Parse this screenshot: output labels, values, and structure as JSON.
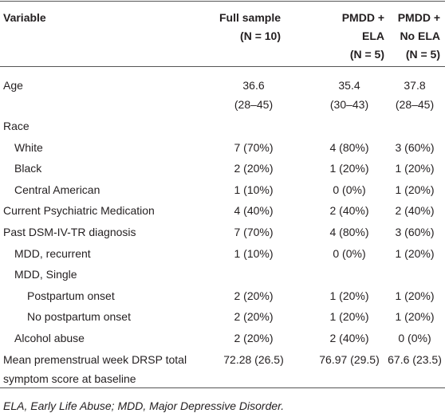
{
  "table": {
    "header": [
      [
        "Variable"
      ],
      [
        "Full sample",
        "(N = 10)"
      ],
      [
        "PMDD +",
        "ELA",
        "(N = 5)"
      ],
      [
        "PMDD +",
        "No ELA",
        "(N = 5)"
      ]
    ],
    "rows": [
      {
        "label": [
          "Age"
        ],
        "values": [
          [
            "36.6",
            "(28–45)"
          ],
          [
            "35.4",
            "(30–43)"
          ],
          [
            "37.8",
            "(28–45)"
          ]
        ]
      },
      {
        "label": [
          "Race"
        ],
        "children": [
          {
            "label": [
              "White"
            ],
            "values": [
              [
                "7 (70%)"
              ],
              [
                "4 (80%)"
              ],
              [
                "3 (60%)"
              ]
            ]
          },
          {
            "label": [
              "Black"
            ],
            "values": [
              [
                "2 (20%)"
              ],
              [
                "1 (20%)"
              ],
              [
                "1 (20%)"
              ]
            ]
          },
          {
            "label": [
              "Central American"
            ],
            "values": [
              [
                "1 (10%)"
              ],
              [
                "0 (0%)"
              ],
              [
                "1 (20%)"
              ]
            ]
          }
        ]
      },
      {
        "label": [
          "Current Psychiatric Medication"
        ],
        "values": [
          [
            "4 (40%)"
          ],
          [
            "2 (40%)"
          ],
          [
            "2 (40%)"
          ]
        ]
      },
      {
        "label": [
          "Past DSM-IV-TR diagnosis"
        ],
        "values": [
          [
            "7 (70%)"
          ],
          [
            "4 (80%)"
          ],
          [
            "3 (60%)"
          ]
        ],
        "children": [
          {
            "label": [
              "MDD, recurrent"
            ],
            "values": [
              [
                "1 (10%)"
              ],
              [
                "0 (0%)"
              ],
              [
                "1 (20%)"
              ]
            ]
          },
          {
            "label": [
              "MDD, Single"
            ],
            "children": [
              {
                "label": [
                  "Postpartum onset"
                ],
                "values": [
                  [
                    "2 (20%)"
                  ],
                  [
                    "1 (20%)"
                  ],
                  [
                    "1 (20%)"
                  ]
                ]
              },
              {
                "label": [
                  "No postpartum onset"
                ],
                "values": [
                  [
                    "2 (20%)"
                  ],
                  [
                    "1 (20%)"
                  ],
                  [
                    "1 (20%)"
                  ]
                ]
              }
            ]
          },
          {
            "label": [
              "Alcohol abuse"
            ],
            "values": [
              [
                "2 (20%)"
              ],
              [
                "2 (40%)"
              ],
              [
                "0 (0%)"
              ]
            ]
          }
        ]
      },
      {
        "label": [
          "Mean premenstrual week DRSP total",
          "symptom score at baseline"
        ],
        "values": [
          [
            "72.28 (26.5)"
          ],
          [
            "76.97 (29.5)"
          ],
          [
            "67.6 (23.5)"
          ]
        ]
      }
    ],
    "footnote": "ELA, Early Life Abuse; MDD, Major Depressive Disorder."
  }
}
